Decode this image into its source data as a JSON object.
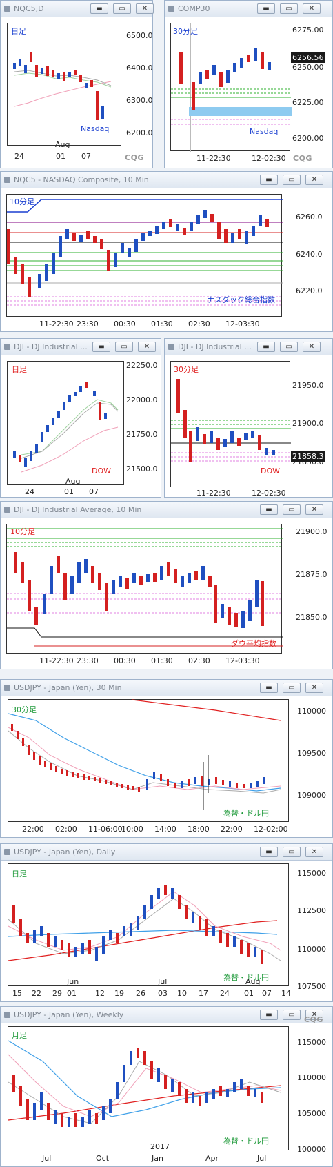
{
  "colors": {
    "up": "#1f4fc0",
    "down": "#d42020",
    "blue_label": "#1a3fd0",
    "red_label": "#e02020",
    "green_label": "#1f9a3a"
  },
  "panels": {
    "nqc5_daily": {
      "title": "NQC5,D",
      "corner": "日足",
      "watermark": "Nasdaq",
      "yaxis": [
        "6500.0",
        "6400.0",
        "6300.0",
        "6200.0"
      ],
      "xaxis": [
        "24",
        "01",
        "07"
      ],
      "xsub": "Aug",
      "logo": "CQG"
    },
    "comp30": {
      "title": "COMP30",
      "corner": "30分足",
      "watermark": "Nasdaq",
      "yaxis": [
        "6275.00",
        "6250.00",
        "6225.00",
        "6200.00"
      ],
      "price": "6256.56",
      "xaxis": [
        "11-22:30",
        "12-02:30"
      ],
      "logo": "CQG"
    },
    "nqc5_10m": {
      "title": "NQC5 - NASDAQ Composite, 10 Min",
      "corner": "10分足",
      "watermark": "ナスダック総合指数",
      "yaxis": [
        "6260.0",
        "6240.0",
        "6220.0"
      ],
      "xaxis": [
        "11-22:30",
        "23:30",
        "00:30",
        "01:30",
        "02:30",
        "12-03:30"
      ]
    },
    "dji_daily": {
      "title": "DJI - DJ Industrial ...",
      "corner": "日足",
      "watermark": "DOW",
      "yaxis": [
        "22250.0",
        "22000.0",
        "21750.0",
        "21500.0"
      ],
      "xaxis": [
        "24",
        "01",
        "07"
      ],
      "xsub": "Aug"
    },
    "dji_30": {
      "title": "DJI - DJ Industrial ...",
      "corner": "30分足",
      "watermark": "DOW",
      "yaxis": [
        "21950.0",
        "21900.0",
        "21850.0"
      ],
      "price": "21858.3",
      "xaxis": [
        "11-22:30",
        "12-02:30"
      ]
    },
    "dji_10m": {
      "title": "DJI - DJ Industrial Average, 10 Min",
      "corner": "10分足",
      "watermark": "ダウ平均指数",
      "yaxis": [
        "21900.0",
        "21875.0",
        "21850.0"
      ],
      "xaxis": [
        "11-22:30",
        "23:30",
        "00:30",
        "01:30",
        "02:30",
        "12-03:30"
      ]
    },
    "usdjpy_30": {
      "title": "USDJPY - Japan (Yen), 30 Min",
      "corner": "30分足",
      "watermark": "為替・ドル円",
      "yaxis": [
        "110000",
        "109500",
        "109000"
      ],
      "xaxis": [
        "22:00",
        "02:00",
        "11-06:00",
        "10:00",
        "14:00",
        "18:00",
        "22:00",
        "12-02:00"
      ]
    },
    "usdjpy_daily": {
      "title": "USDJPY - Japan (Yen), Daily",
      "corner": "日足",
      "watermark": "為替・ドル円",
      "yaxis": [
        "115000",
        "112500",
        "110000",
        "107500"
      ],
      "xaxis": [
        "15",
        "22",
        "29",
        "01",
        "12",
        "19",
        "26",
        "03",
        "10",
        "17",
        "24",
        "01",
        "07",
        "14"
      ],
      "xsub_left": "Jun",
      "xsub_mid": "Jul",
      "xsub_right": "Aug"
    },
    "usdjpy_weekly": {
      "title": "USDJPY - Japan (Yen), Weekly",
      "corner": "月足",
      "watermark": "為替・ドル円",
      "yaxis": [
        "115000",
        "110000",
        "105000",
        "100000"
      ],
      "xaxis": [
        "Jul",
        "Oct",
        "Jan",
        "Apr",
        "Jul"
      ],
      "xsub": "2017",
      "logo": "CQG"
    }
  },
  "window_buttons": {
    "minimize": "▬",
    "restore": "▭",
    "close": "✕"
  }
}
